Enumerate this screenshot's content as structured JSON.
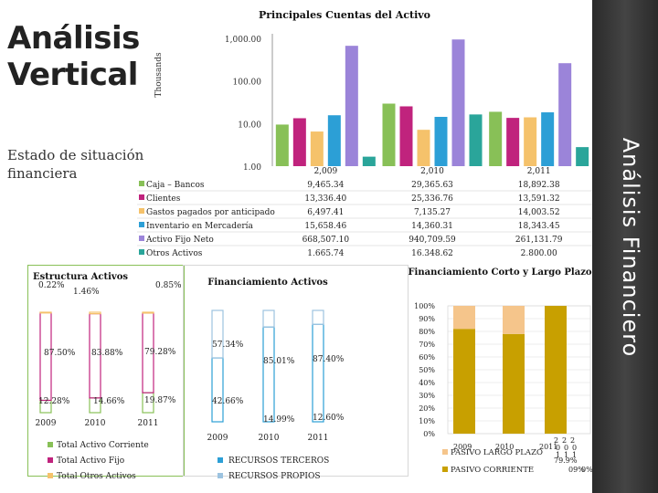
{
  "slide": {
    "title_line1": "Análisis",
    "title_line2": "Vertical",
    "subtitle_line1": "Estado de situación",
    "subtitle_line2": "financiera",
    "side_title": "Análisis Financiero"
  },
  "chart_data": [
    {
      "type": "bar",
      "title": "Principales Cuentas del Activo",
      "ylabel": "Thousands",
      "yscale": "log",
      "ylim": [
        1,
        1000
      ],
      "yticks": [
        "1,000.00",
        "100.00",
        "10.00",
        "1.00"
      ],
      "categories": [
        "2,009",
        "2,010",
        "2,011"
      ],
      "series": [
        {
          "name": "Caja – Bancos",
          "color": "#88c057",
          "values": [
            9.47,
            29.37,
            18.89
          ],
          "labels": [
            "9,465.34",
            "29,365.63",
            "18,892.38"
          ]
        },
        {
          "name": "Clientes",
          "color": "#c0237d",
          "values": [
            13.34,
            25.34,
            13.59
          ],
          "labels": [
            "13,336.40",
            "25,336.76",
            "13,591.32"
          ]
        },
        {
          "name": "Gastos pagados por anticipado",
          "color": "#f5c26b",
          "values": [
            6.5,
            7.14,
            14.0
          ],
          "labels": [
            "6,497.41",
            "7,135.27",
            "14,003.52"
          ]
        },
        {
          "name": "Inventario en Mercadería",
          "color": "#2c9fd6",
          "values": [
            15.66,
            14.36,
            18.34
          ],
          "labels": [
            "15,658.46",
            "14,360.31",
            "18,343.45"
          ]
        },
        {
          "name": "Activo Fijo Neto",
          "color": "#9b84d9",
          "values": [
            668.51,
            940.71,
            261.13
          ],
          "labels": [
            "668,507.10",
            "940,709.59",
            "261,131.79"
          ]
        },
        {
          "name": "Otros Activos",
          "color": "#2aa59a",
          "values": [
            1.67,
            16.35,
            2.8
          ],
          "labels": [
            "1,665.74",
            "16,348.62",
            "2,800.00"
          ]
        }
      ]
    },
    {
      "type": "bar",
      "title": "Estructura Activos",
      "stacked": true,
      "categories": [
        "2009",
        "2010",
        "2011"
      ],
      "series": [
        {
          "name": "Total Activo Corriente",
          "color": "#88c057",
          "values": [
            12.28,
            14.66,
            19.87
          ],
          "labels": [
            "12.28%",
            "14.66%",
            "19.87%"
          ]
        },
        {
          "name": "Total Activo Fijo",
          "color": "#c0237d",
          "values": [
            87.5,
            83.88,
            79.28
          ],
          "labels": [
            "87.50%",
            "83.88%",
            "79.28%"
          ]
        },
        {
          "name": "Total Otros Activos",
          "color": "#f5c26b",
          "values": [
            0.22,
            1.46,
            0.85
          ],
          "labels": [
            "0.22%",
            "1.46%",
            "0.85%"
          ]
        }
      ]
    },
    {
      "type": "bar",
      "title": "Financiamiento Activos",
      "stacked": true,
      "categories": [
        "2009",
        "2010",
        "2011"
      ],
      "series": [
        {
          "name": "RECURSOS TERCEROS",
          "color": "#2c9fd6",
          "values": [
            57.34,
            85.01,
            87.4
          ],
          "labels": [
            "57.34%",
            "85.01%",
            "87.40%"
          ]
        },
        {
          "name": "RECURSOS PROPIOS",
          "color": "#9cc3e0",
          "values": [
            42.66,
            14.99,
            12.6
          ],
          "labels": [
            "42.66%",
            "14.99%",
            "12.60%"
          ]
        }
      ]
    },
    {
      "type": "bar",
      "title": "Financiamiento Corto y Largo Plazo",
      "stacked": true,
      "yticks": [
        "100%",
        "90%",
        "80%",
        "70%",
        "60%",
        "50%",
        "40%",
        "30%",
        "20%",
        "10%",
        "0%"
      ],
      "categories": [
        "2009",
        "2010",
        "2011"
      ],
      "series": [
        {
          "name": "PASIVO CORRIENTE",
          "color": "#c8a000",
          "values": [
            82.0,
            78.0,
            100.0
          ]
        },
        {
          "name": "PASIVO LARGO PLAZO",
          "color": "#f5c58b",
          "values": [
            18.0,
            22.0,
            0.0
          ]
        }
      ],
      "legend_tail": [
        "2",
        "2",
        "2",
        "0",
        "0",
        "0",
        "1",
        "1",
        "1",
        "79.9%",
        "09%",
        "0%"
      ]
    }
  ]
}
